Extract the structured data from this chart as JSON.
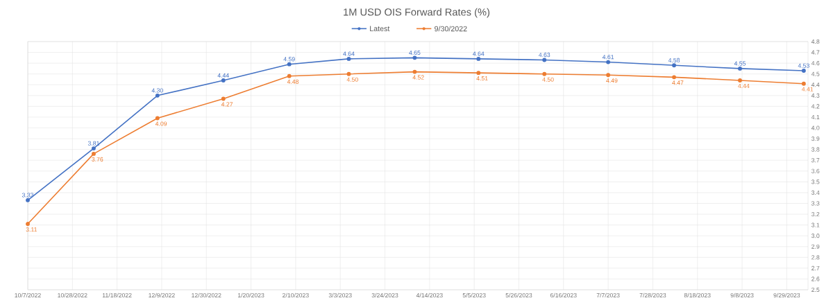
{
  "chart_data": {
    "type": "line",
    "title": "1M USD OIS Forward Rates (%)",
    "x": [
      "2022-10-07",
      "2022-11-07",
      "2022-12-07",
      "2023-01-07",
      "2023-02-07",
      "2023-03-07",
      "2023-04-07",
      "2023-05-07",
      "2023-06-07",
      "2023-07-07",
      "2023-08-07",
      "2023-09-07",
      "2023-10-07"
    ],
    "series": [
      {
        "name": "Latest",
        "color": "#4472c4",
        "values": [
          3.33,
          3.81,
          4.3,
          4.44,
          4.59,
          4.64,
          4.65,
          4.64,
          4.63,
          4.61,
          4.58,
          4.55,
          4.53
        ],
        "value_labels": [
          "3.33",
          "3.81",
          "4.30",
          "4.44",
          "4.59",
          "4.64",
          "4.65",
          "4.64",
          "4.63",
          "4.61",
          "4.58",
          "4.55",
          "4.53"
        ]
      },
      {
        "name": "9/30/2022",
        "color": "#ed7d31",
        "values": [
          3.11,
          3.76,
          4.09,
          4.27,
          4.48,
          4.5,
          4.52,
          4.51,
          4.5,
          4.49,
          4.47,
          4.44,
          4.41
        ],
        "value_labels": [
          "3.11",
          "3.76",
          "4.09",
          "4.27",
          "4.48",
          "4.50",
          "4.52",
          "4.51",
          "4.50",
          "4.49",
          "4.47",
          "4.44",
          "4.41"
        ]
      }
    ],
    "xlim": [
      "2022-10-07",
      "2023-10-09"
    ],
    "xticks": [
      {
        "value": "2022-10-07",
        "label": "10/7/2022"
      },
      {
        "value": "2022-10-28",
        "label": "10/28/2022"
      },
      {
        "value": "2022-11-18",
        "label": "11/18/2022"
      },
      {
        "value": "2022-12-09",
        "label": "12/9/2022"
      },
      {
        "value": "2022-12-30",
        "label": "12/30/2022"
      },
      {
        "value": "2023-01-20",
        "label": "1/20/2023"
      },
      {
        "value": "2023-02-10",
        "label": "2/10/2023"
      },
      {
        "value": "2023-03-03",
        "label": "3/3/2023"
      },
      {
        "value": "2023-03-24",
        "label": "3/24/2023"
      },
      {
        "value": "2023-04-14",
        "label": "4/14/2023"
      },
      {
        "value": "2023-05-05",
        "label": "5/5/2023"
      },
      {
        "value": "2023-05-26",
        "label": "5/26/2023"
      },
      {
        "value": "2023-06-16",
        "label": "6/16/2023"
      },
      {
        "value": "2023-07-07",
        "label": "7/7/2023"
      },
      {
        "value": "2023-07-28",
        "label": "7/28/2023"
      },
      {
        "value": "2023-08-18",
        "label": "8/18/2023"
      },
      {
        "value": "2023-09-08",
        "label": "9/8/2023"
      },
      {
        "value": "2023-09-29",
        "label": "9/29/2023"
      }
    ],
    "ylim": [
      2.5,
      4.8
    ],
    "yticks": [
      2.5,
      2.6,
      2.7,
      2.8,
      2.9,
      {
        "value": 3,
        "label": "3.0"
      },
      3.1,
      3.2,
      3.3,
      3.4,
      3.5,
      3.6,
      3.7,
      3.8,
      3.9,
      {
        "value": 4,
        "label": "4.0"
      },
      4.1,
      4.2,
      4.3,
      4.4,
      4.5,
      4.6,
      4.7,
      4.8
    ],
    "grid": true,
    "legend": "top",
    "marker": "circle",
    "line_style": "solid"
  }
}
